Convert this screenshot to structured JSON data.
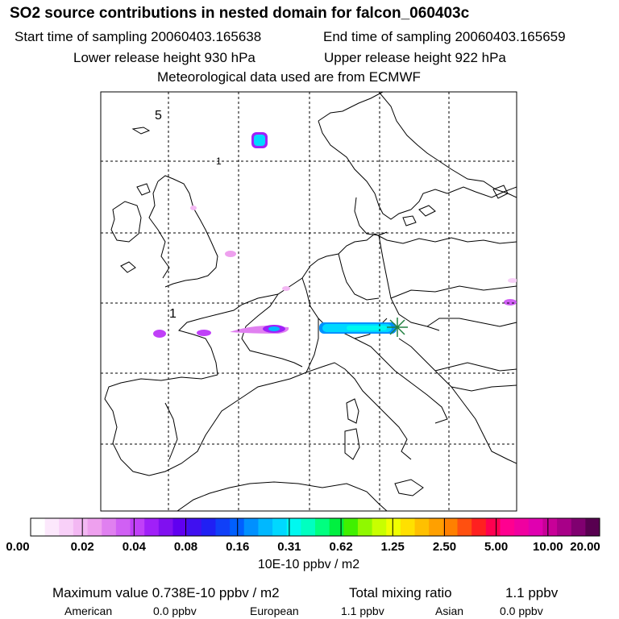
{
  "header": {
    "title": "SO2 source contributions in nested domain for falcon_060403c",
    "start_label": "Start time of sampling 20060403.165638",
    "end_label": "End time of sampling 20060403.165659",
    "lower_label": "Lower release height  930 hPa",
    "upper_label": "Upper release height  922 hPa",
    "met_label": "Meteorological data used are from ECMWF"
  },
  "map": {
    "grid_labels": [
      "5",
      "1",
      "1"
    ],
    "marker": "release-site-star"
  },
  "colorbar": {
    "tick_labels": [
      "0.00",
      "0.02",
      "0.04",
      "0.08",
      "0.16",
      "0.31",
      "0.62",
      "1.25",
      "2.50",
      "5.00",
      "10.00",
      "20.00"
    ],
    "unit": "10E-10 ppbv / m2",
    "colors": [
      "#ffffff",
      "#fce8fc",
      "#f8d0f8",
      "#f3b8f3",
      "#eea0ee",
      "#e080f0",
      "#d060f4",
      "#c040f8",
      "#a020f8",
      "#8010f0",
      "#6000f0",
      "#4010f0",
      "#2020f4",
      "#1040f8",
      "#0060ff",
      "#0090ff",
      "#00b8ff",
      "#00d8ff",
      "#00f8f0",
      "#00ffc0",
      "#00ff80",
      "#00f040",
      "#40f000",
      "#90f800",
      "#c8ff00",
      "#f0ff00",
      "#ffe000",
      "#ffc000",
      "#ffa000",
      "#ff8000",
      "#ff5010",
      "#ff2020",
      "#ff0050",
      "#ff0090",
      "#f000a0",
      "#e000b0",
      "#c80098",
      "#a80088",
      "#800070",
      "#580050"
    ]
  },
  "footer": {
    "max_label": "Maximum value  0.738E-10 ppbv / m2",
    "total_label": "Total mixing ratio",
    "total_value": "1.1 ppbv",
    "american_label": "American",
    "american_value": "0.0 ppbv",
    "european_label": "European",
    "european_value": "1.1 ppbv",
    "asian_label": "Asian",
    "asian_value": "0.0 ppbv"
  }
}
